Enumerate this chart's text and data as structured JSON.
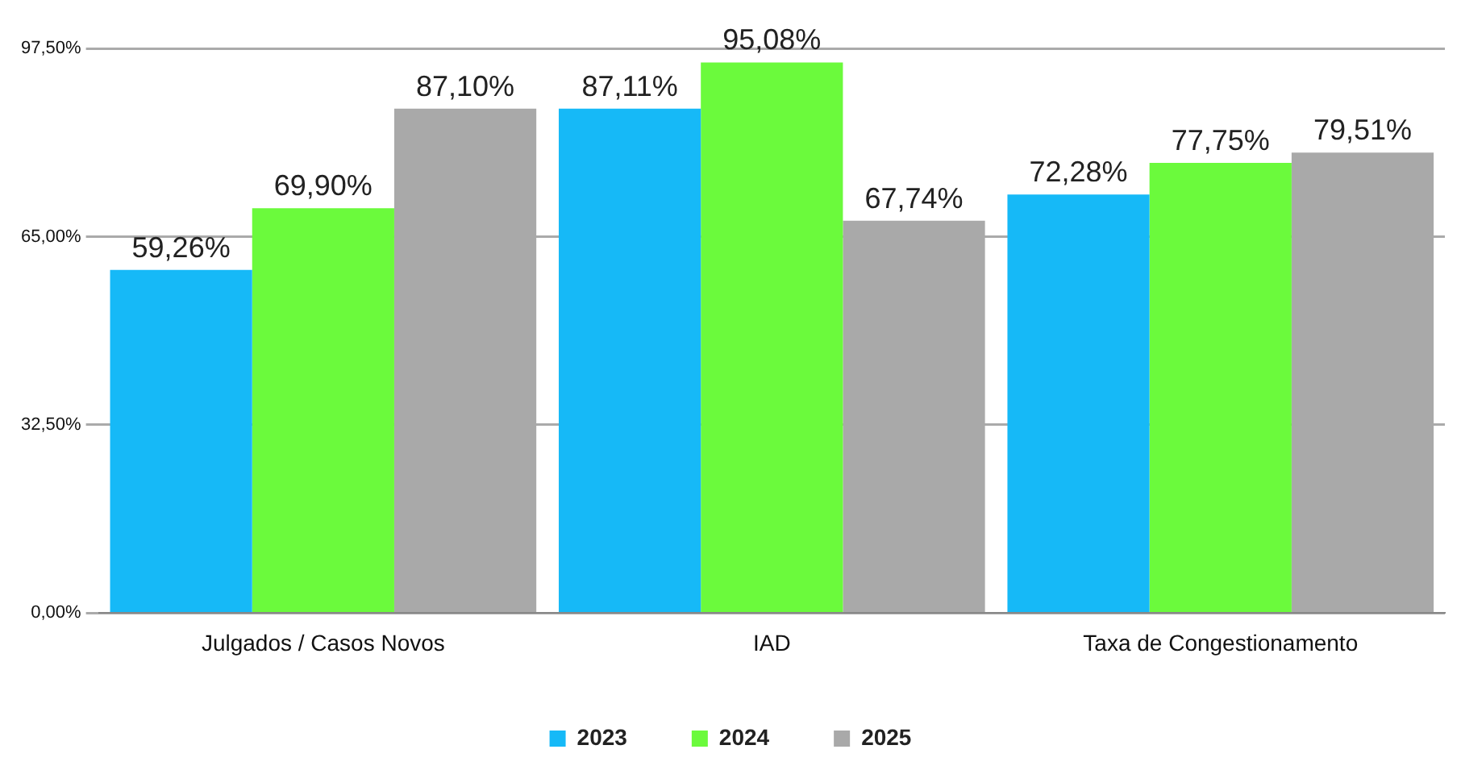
{
  "chart_data": {
    "type": "bar",
    "categories": [
      "Julgados / Casos Novos",
      "IAD",
      "Taxa de Congestionamento"
    ],
    "series": [
      {
        "name": "2023",
        "color": "#16b9f7",
        "values": [
          59.26,
          87.11,
          72.28
        ],
        "value_labels": [
          "59,26%",
          "87,11%",
          "72,28%"
        ]
      },
      {
        "name": "2024",
        "color": "#6bfa3c",
        "values": [
          69.9,
          95.08,
          77.75
        ],
        "value_labels": [
          "69,90%",
          "95,08%",
          "77,75%"
        ]
      },
      {
        "name": "2025",
        "color": "#a9a9a9",
        "values": [
          87.1,
          67.74,
          79.51
        ],
        "value_labels": [
          "87,10%",
          "67,74%",
          "79,51%"
        ]
      }
    ],
    "ylim": [
      0,
      97.5
    ],
    "yticks": [
      {
        "value": 0,
        "label": "0,00%"
      },
      {
        "value": 32.5,
        "label": "32,50%"
      },
      {
        "value": 65,
        "label": "65,00%"
      },
      {
        "value": 97.5,
        "label": "97,50%"
      }
    ],
    "grid": "y",
    "legend": "bottom"
  }
}
